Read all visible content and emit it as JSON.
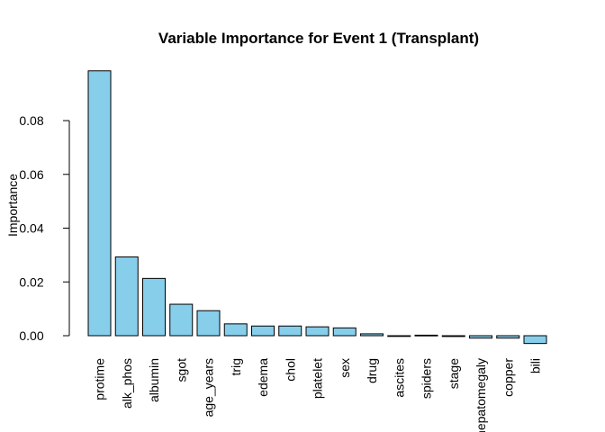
{
  "chart_data": {
    "type": "bar",
    "title": "Variable Importance for Event 1 (Transplant)",
    "xlabel": "",
    "ylabel": "Importance",
    "categories": [
      "protime",
      "alk_phos",
      "albumin",
      "sgot",
      "age_years",
      "trig",
      "edema",
      "chol",
      "platelet",
      "sex",
      "drug",
      "ascites",
      "spiders",
      "stage",
      "hepatomegaly",
      "copper",
      "bili"
    ],
    "values": [
      0.0985,
      0.0293,
      0.0213,
      0.0117,
      0.0093,
      0.0044,
      0.0036,
      0.0036,
      0.0033,
      0.0029,
      0.0007,
      -0.0001,
      0.0002,
      -0.0003,
      -0.0009,
      -0.0009,
      -0.0029
    ],
    "yticks": [
      "0.00",
      "0.02",
      "0.04",
      "0.06",
      "0.08"
    ],
    "ylim": [
      -0.003,
      0.1
    ],
    "grid": false,
    "legend": false,
    "colors": {
      "bar_fill": "#87CEEB",
      "bar_stroke": "#000000"
    }
  }
}
